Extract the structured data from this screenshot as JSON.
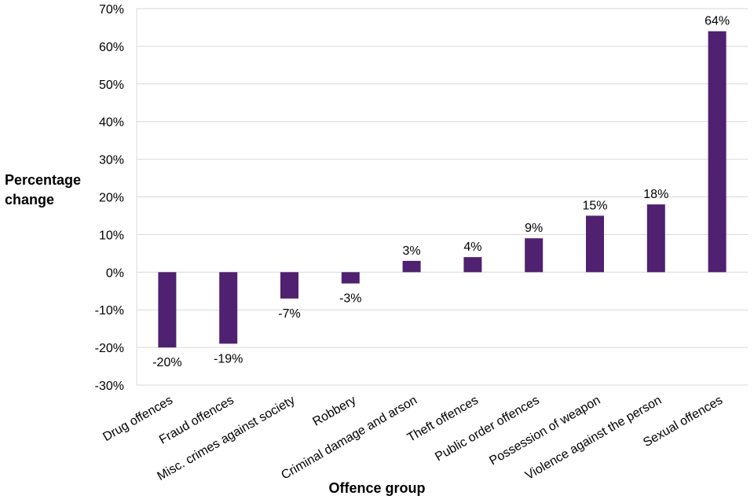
{
  "chart_data": {
    "type": "bar",
    "title": "",
    "ylabel_lines": [
      "Percentage",
      "change"
    ],
    "xlabel": "Offence group",
    "ylim": [
      -30,
      70
    ],
    "yticks": [
      -30,
      -20,
      -10,
      0,
      10,
      20,
      30,
      40,
      50,
      60,
      70
    ],
    "tick_suffix": "%",
    "grid": true,
    "bar_color": "#4f2170",
    "categories": [
      "Drug offences",
      "Fraud offences",
      "Misc. crimes against society",
      "Robbery",
      "Criminal damage and arson",
      "Theft offences",
      "Public order offences",
      "Possession of weapon",
      "Violence against the person",
      "Sexual offences"
    ],
    "values": [
      -20,
      -19,
      -7,
      -3,
      3,
      4,
      9,
      15,
      18,
      64
    ],
    "data_labels": [
      "-20%",
      "-19%",
      "-7%",
      "-3%",
      "3%",
      "4%",
      "9%",
      "15%",
      "18%",
      "64%"
    ]
  }
}
